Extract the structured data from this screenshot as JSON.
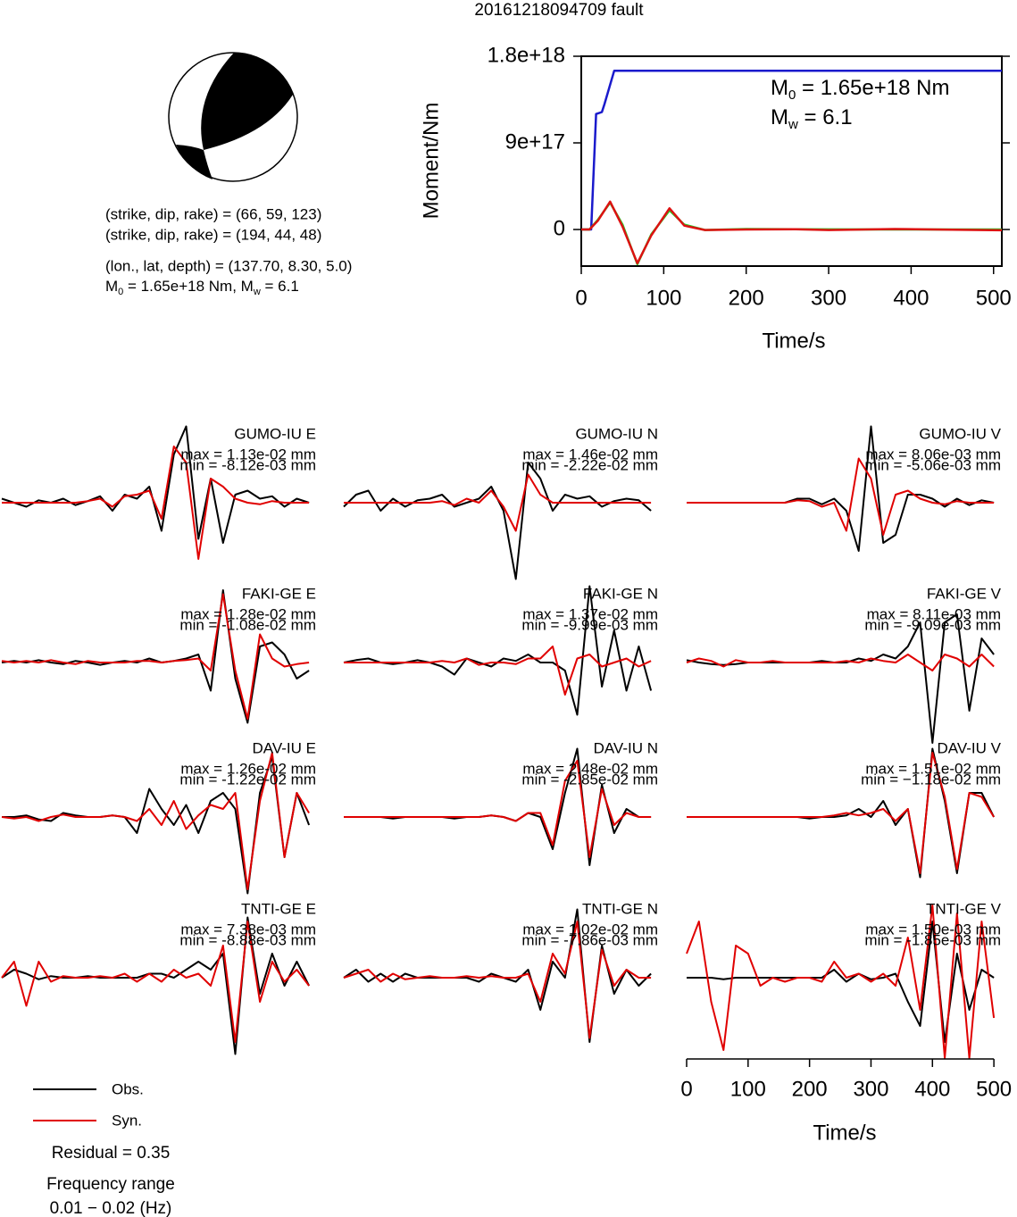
{
  "title": "20161218094709 fault",
  "info": {
    "lines": [
      "(strike, dip, rake) = (66, 59, 123)",
      "(strike, dip, rake) = (194, 44, 48)",
      "(lon., lat, depth) = (137.70, 8.30, 5.0)"
    ],
    "moment_line": [
      "M",
      "0",
      " = 1.65e+18 Nm, M",
      "w",
      " = 6.1"
    ]
  },
  "residual": "Residual = 0.35",
  "frequency": [
    "Frequency range",
    "0.01 − 0.02 (Hz)"
  ],
  "chart_data": [
    {
      "type": "line",
      "xlabel": "Time/s",
      "ylabel": "Moment/Nm",
      "xlim": [
        0,
        510
      ],
      "xticks": [
        0,
        100,
        200,
        300,
        400,
        500
      ],
      "ylim": [
        -3.8e+17,
        1.8e+18
      ],
      "yticks": [
        0,
        {
          "value": 9e+17,
          "label": "9e+17"
        },
        {
          "value": 1.8e+18,
          "label": "1.8e+18"
        }
      ],
      "annotations": [
        [
          "M",
          "0",
          " = 1.65e+18 Nm"
        ],
        [
          "M",
          "w",
          " = 6.1"
        ]
      ],
      "series": [
        {
          "color": "#1a1acc",
          "x": [
            0,
            12,
            18,
            25,
            28,
            40,
            510
          ],
          "values": [
            0,
            0,
            1.2e+18,
            1.22e+18,
            1.3e+18,
            1.65e+18,
            1.65e+18
          ]
        },
        {
          "color": "#22cc22",
          "x": [
            0,
            10,
            20,
            35,
            50,
            68,
            85,
            107,
            125,
            150,
            200,
            260,
            300,
            380,
            450,
            510
          ],
          "values": [
            0,
            0,
            1e+17,
            2.8e+17,
            5e+16,
            -3.6e+17,
            -5e+16,
            2e+17,
            5e+16,
            -5000000000000000.0,
            5000000000000000.0,
            2000000000000000.0,
            1000000000000000.0,
            0,
            0,
            0
          ]
        },
        {
          "color": "#dd1111",
          "x": [
            0,
            10,
            20,
            35,
            50,
            68,
            85,
            107,
            125,
            150,
            200,
            260,
            300,
            380,
            450,
            510
          ],
          "values": [
            0,
            0,
            9e+16,
            2.9e+17,
            3e+16,
            -3.5e+17,
            -6e+16,
            2.2e+17,
            4e+16,
            -5000000000000000.0,
            0,
            3000000000000000.0,
            -5000000000000000.0,
            5000000000000000.0,
            -2000000000000000.0,
            -8000000000000000.0
          ]
        }
      ]
    },
    {
      "type": "waveform",
      "xlabel": "Time/s",
      "xlim": [
        0,
        510
      ],
      "xticks": [
        0,
        100,
        200,
        300,
        400,
        500
      ],
      "x": [
        0,
        20,
        40,
        60,
        80,
        100,
        120,
        140,
        160,
        180,
        200,
        220,
        240,
        260,
        280,
        300,
        320,
        340,
        360,
        380,
        400,
        420,
        440,
        460,
        480,
        500
      ],
      "series": [
        {
          "name": "Obs.",
          "color": "#000000"
        },
        {
          "name": "Syn.",
          "color": "#e00000"
        }
      ],
      "panels": [
        {
          "station": "GUMO-IU E",
          "max": "max = 1.13e-02 mm",
          "min": "min = -8.12e-03 mm",
          "obs": [
            0.05,
            0,
            -0.05,
            0.03,
            0,
            0.05,
            -0.03,
            0.02,
            0.08,
            -0.1,
            0.1,
            0.05,
            0.2,
            -0.35,
            0.6,
            0.95,
            -0.45,
            0.3,
            -0.5,
            0.1,
            0.15,
            0.05,
            0.08,
            -0.05,
            0.05,
            0
          ],
          "syn": [
            0,
            0,
            0,
            0,
            0,
            0,
            0,
            0.02,
            0.05,
            -0.05,
            0.08,
            0.1,
            0.15,
            -0.2,
            0.7,
            0.5,
            -0.7,
            0.3,
            0.2,
            0.05,
            0,
            -0.02,
            0.02,
            0,
            0,
            0
          ]
        },
        {
          "station": "GUMO-IU N",
          "max": "max = 1.46e-02 mm",
          "min": "min = -2.22e-02 mm",
          "obs": [
            -0.05,
            0.1,
            0.15,
            -0.1,
            0.05,
            -0.05,
            0.03,
            0.05,
            0.1,
            -0.05,
            0,
            0.05,
            0.2,
            -0.1,
            -0.95,
            0.5,
            0.3,
            -0.1,
            0.1,
            0.05,
            0.08,
            -0.05,
            0.02,
            0.05,
            0.03,
            -0.1
          ],
          "syn": [
            0,
            0,
            0,
            0,
            0,
            0,
            0,
            0,
            0.02,
            -0.03,
            0.05,
            0,
            0.15,
            -0.05,
            -0.35,
            0.35,
            0.1,
            0,
            0,
            0,
            0,
            0,
            0,
            0,
            0,
            0
          ]
        },
        {
          "station": "GUMO-IU V",
          "max": "max = 8.06e-03 mm",
          "min": "min = -5.06e-03 mm",
          "obs": [
            0,
            0,
            0,
            0,
            0,
            0,
            0,
            0,
            0,
            0.05,
            0.05,
            -0.02,
            0.05,
            -0.1,
            -0.6,
            0.95,
            -0.5,
            -0.4,
            0.1,
            0.1,
            0.05,
            -0.05,
            0.05,
            -0.03,
            0.03,
            0
          ],
          "syn": [
            0,
            0,
            0,
            0,
            0,
            0,
            0,
            0,
            0,
            0.03,
            0.02,
            -0.05,
            0,
            -0.35,
            0.55,
            0.3,
            -0.4,
            0.1,
            0.15,
            0.05,
            0,
            -0.02,
            0.02,
            0,
            0,
            0
          ]
        },
        {
          "station": "FAKI-GE E",
          "max": "max = 1.28e-02 mm",
          "min": "min = -1.08e-02 mm",
          "obs": [
            0,
            0.02,
            0,
            0.03,
            0,
            -0.02,
            0.02,
            0,
            -0.03,
            0,
            0.02,
            0,
            0.05,
            0,
            0.02,
            0.05,
            0.1,
            -0.35,
            0.9,
            -0.2,
            -0.75,
            0.2,
            0.25,
            0.1,
            -0.2,
            -0.1
          ],
          "syn": [
            0.02,
            0,
            0.02,
            0,
            0.03,
            0,
            -0.02,
            0.02,
            0,
            0,
            0,
            0.02,
            0.02,
            0,
            0.02,
            0.03,
            0.05,
            -0.1,
            0.85,
            -0.1,
            -0.7,
            0.35,
            0.05,
            -0.05,
            -0.02,
            0
          ]
        },
        {
          "station": "FAKI-GE N",
          "max": "max = 1.37e-02 mm",
          "min": "min = -9.99e-03 mm",
          "obs": [
            0,
            0.03,
            0.05,
            0,
            -0.02,
            0,
            0.03,
            0,
            -0.05,
            -0.15,
            0.05,
            0,
            -0.05,
            0.05,
            0.02,
            0.1,
            0,
            0,
            -0.1,
            -0.65,
            0.95,
            -0.3,
            0.4,
            -0.35,
            0.2,
            -0.35
          ],
          "syn": [
            0,
            0,
            0,
            0,
            0,
            0,
            0,
            0,
            0.02,
            0,
            0.05,
            -0.03,
            0,
            0,
            -0.02,
            0.05,
            0.05,
            0.2,
            -0.4,
            0.05,
            0.1,
            -0.05,
            0,
            0.05,
            -0.05,
            0.02
          ]
        },
        {
          "station": "FAKI-GE V",
          "max": "max = 8.11e-03 mm",
          "min": "min = -9.09e-03 mm",
          "obs": [
            0.03,
            0,
            -0.02,
            -0.03,
            -0.02,
            0,
            0,
            0,
            0,
            0,
            0,
            0.02,
            0,
            0,
            0.05,
            0.02,
            0.1,
            0.05,
            0.2,
            0.5,
            -1.0,
            0.5,
            0.6,
            -0.6,
            0.3,
            0.1
          ],
          "syn": [
            0,
            0.05,
            0.02,
            -0.05,
            0.03,
            0,
            0,
            0.02,
            0,
            0,
            0,
            0,
            0,
            0.02,
            0,
            0.05,
            0.02,
            0,
            0.1,
            0,
            -0.1,
            0.1,
            0.05,
            -0.05,
            0.1,
            -0.05
          ]
        },
        {
          "station": "DAV-IU E",
          "max": "max = 1.26e-02 mm",
          "min": "min = -1.22e-02 mm",
          "obs": [
            0,
            0,
            0.02,
            -0.03,
            -0.05,
            0.05,
            0.02,
            0,
            0,
            0.02,
            0,
            -0.2,
            0.35,
            0.1,
            -0.1,
            0.15,
            -0.2,
            0.2,
            0.3,
            0.1,
            -0.95,
            0.3,
            0.75,
            -0.5,
            0.3,
            -0.1
          ],
          "syn": [
            0,
            -0.02,
            0,
            -0.05,
            0,
            0.03,
            0,
            0,
            0,
            0.02,
            0,
            -0.05,
            0.1,
            -0.1,
            0.2,
            -0.15,
            0.02,
            0.15,
            0.1,
            0.3,
            -0.9,
            0.2,
            0.8,
            -0.5,
            0.3,
            0.05
          ]
        },
        {
          "station": "DAV-IU N",
          "max": "max = 2.48e-02 mm",
          "min": "min = -2.85e-02 mm",
          "obs": [
            0,
            0,
            0,
            0,
            -0.02,
            0,
            0,
            0,
            0,
            -0.02,
            0,
            0,
            0.02,
            0,
            -0.05,
            0.05,
            0,
            -0.4,
            0.3,
            0.85,
            -0.6,
            0.4,
            -0.2,
            0.1,
            0,
            0
          ],
          "syn": [
            0,
            0,
            0,
            0,
            0,
            0,
            0,
            0,
            0,
            0,
            0,
            0,
            0.02,
            0,
            -0.05,
            0.05,
            0.05,
            -0.35,
            0.45,
            0.7,
            -0.5,
            0.35,
            -0.1,
            0.05,
            0,
            0
          ]
        },
        {
          "station": "DAV-IU V",
          "max": "max = 1.51e-02 mm",
          "min": "min = −1.18e-02 mm",
          "obs": [
            0,
            0,
            0,
            0,
            0,
            0,
            0,
            0,
            0,
            0,
            -0.02,
            0,
            0,
            0.02,
            0.1,
            0,
            0.2,
            -0.1,
            0.1,
            -0.75,
            0.85,
            0.2,
            -0.7,
            0.3,
            0.3,
            0
          ],
          "syn": [
            0,
            0,
            0,
            0,
            0,
            0,
            0,
            0,
            0,
            0,
            0,
            0,
            0.02,
            0.05,
            0.02,
            0.05,
            0.1,
            -0.05,
            0.1,
            -0.7,
            0.8,
            0.25,
            -0.65,
            0.3,
            0.25,
            0
          ]
        },
        {
          "station": "TNTI-GE E",
          "max": "max = 7.38e-03 mm",
          "min": "min = -8.88e-03 mm",
          "obs": [
            0,
            0.1,
            0.05,
            -0.02,
            0.02,
            0,
            0,
            0.02,
            0,
            0,
            0,
            0,
            0.05,
            0.05,
            0,
            0.1,
            0.2,
            0.1,
            0.3,
            -0.95,
            0.75,
            -0.2,
            0.3,
            -0.1,
            0.2,
            -0.1
          ],
          "syn": [
            0,
            0.2,
            -0.35,
            0.2,
            -0.05,
            0.02,
            0,
            0,
            0.02,
            0,
            0.05,
            -0.05,
            0.05,
            -0.05,
            0.1,
            0,
            0.05,
            -0.1,
            0.4,
            -0.8,
            0.7,
            -0.3,
            0.2,
            -0.05,
            0.1,
            -0.1
          ]
        },
        {
          "station": "TNTI-GE N",
          "max": "max = 1.02e-02 mm",
          "min": "min = -7.86e-03 mm",
          "obs": [
            0,
            0.1,
            -0.05,
            0.05,
            -0.05,
            0.05,
            0,
            0,
            0,
            0,
            0,
            -0.05,
            0.05,
            0,
            -0.05,
            0.1,
            -0.4,
            0.2,
            0,
            0.85,
            -0.8,
            0.4,
            -0.2,
            0.1,
            -0.1,
            0.05
          ],
          "syn": [
            0,
            0.05,
            0.1,
            -0.05,
            0.05,
            -0.02,
            0,
            0.02,
            0,
            0,
            0.02,
            0,
            0.02,
            0,
            0,
            0.05,
            -0.3,
            0.3,
            0.05,
            0.7,
            -0.75,
            0.35,
            -0.1,
            0.1,
            0,
            0
          ]
        },
        {
          "station": "TNTI-GE V",
          "max": "max = 1.50e-03 mm",
          "min": "min = -1.85e-03 mm",
          "obs": [
            0,
            0,
            0,
            -0.02,
            0,
            0,
            0,
            0,
            0,
            0,
            0,
            0,
            0.1,
            -0.05,
            0.05,
            -0.02,
            0,
            0.05,
            -0.3,
            -0.6,
            0.7,
            -0.8,
            0.3,
            -0.4,
            0.1,
            0
          ],
          "syn": [
            0.3,
            0.7,
            -0.3,
            -0.9,
            0.4,
            0.3,
            -0.1,
            0,
            -0.05,
            0,
            0,
            -0.05,
            0.2,
            0,
            0.05,
            -0.05,
            0.05,
            -0.1,
            0.5,
            -0.4,
            0.9,
            -1.0,
            0.8,
            -1.0,
            0.7,
            -0.5
          ]
        }
      ]
    }
  ]
}
